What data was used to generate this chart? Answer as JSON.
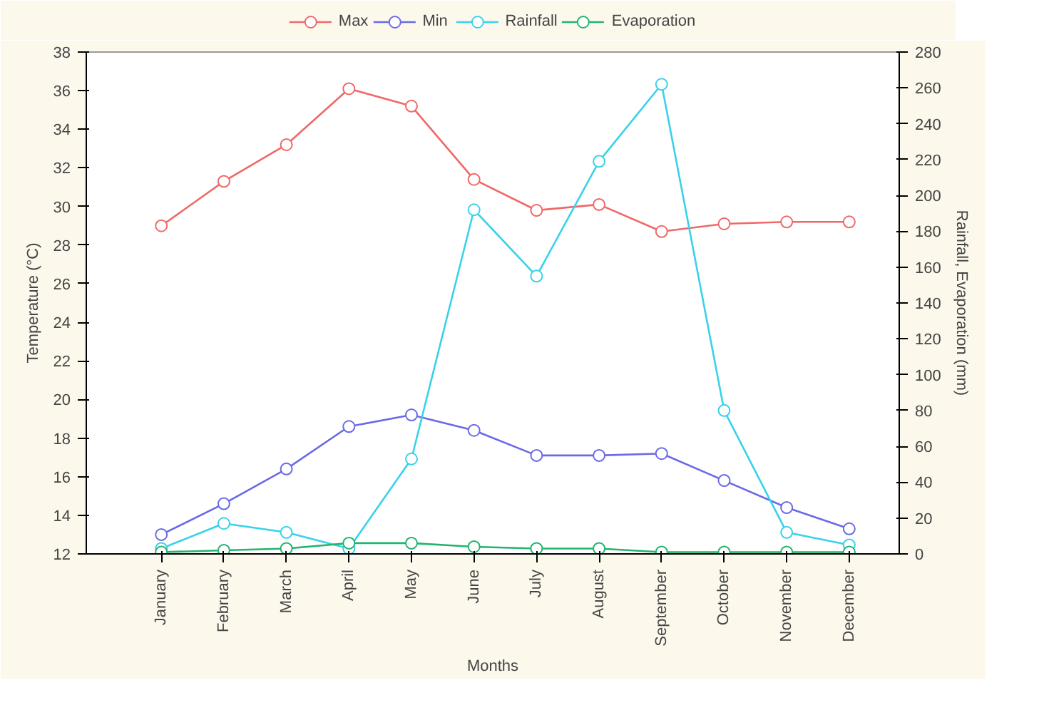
{
  "chart_data": {
    "type": "line",
    "categories": [
      "January",
      "February",
      "March",
      "April",
      "May",
      "June",
      "July",
      "August",
      "September",
      "October",
      "November",
      "December"
    ],
    "xlabel": "Months",
    "ylabel": "Temperature (°C)",
    "y2label": "Rainfall, Evaporation (mm)",
    "ylim": [
      12,
      38
    ],
    "yticks": [
      12,
      14,
      16,
      18,
      20,
      22,
      24,
      26,
      28,
      30,
      32,
      34,
      36,
      38
    ],
    "y2lim": [
      0,
      280
    ],
    "y2ticks": [
      0,
      20,
      40,
      60,
      80,
      100,
      120,
      140,
      160,
      180,
      200,
      220,
      240,
      260,
      280
    ],
    "series": [
      {
        "name": "Max",
        "color": "#f06868",
        "values": [
          29.0,
          31.3,
          33.2,
          36.1,
          35.2,
          31.4,
          29.8,
          30.1,
          28.7,
          29.1,
          29.2,
          29.2
        ]
      },
      {
        "name": "Min",
        "color": "#6a6ae6",
        "values": [
          13.0,
          14.6,
          16.4,
          18.6,
          19.2,
          18.4,
          17.1,
          17.1,
          17.2,
          15.8,
          14.4,
          13.3
        ]
      },
      {
        "name": "Rainfall",
        "color": "#38d2ea",
        "axis": "y2",
        "values": [
          3,
          17,
          12,
          3,
          53,
          192,
          155,
          219,
          262,
          80,
          12,
          5
        ]
      },
      {
        "name": "Evaporation",
        "color": "#22b470",
        "axis": "y2",
        "values": [
          1,
          2,
          3,
          6,
          6,
          4,
          3,
          3,
          1,
          1,
          1,
          1
        ]
      }
    ],
    "marker": "circle",
    "grid": false,
    "legend": "top"
  }
}
